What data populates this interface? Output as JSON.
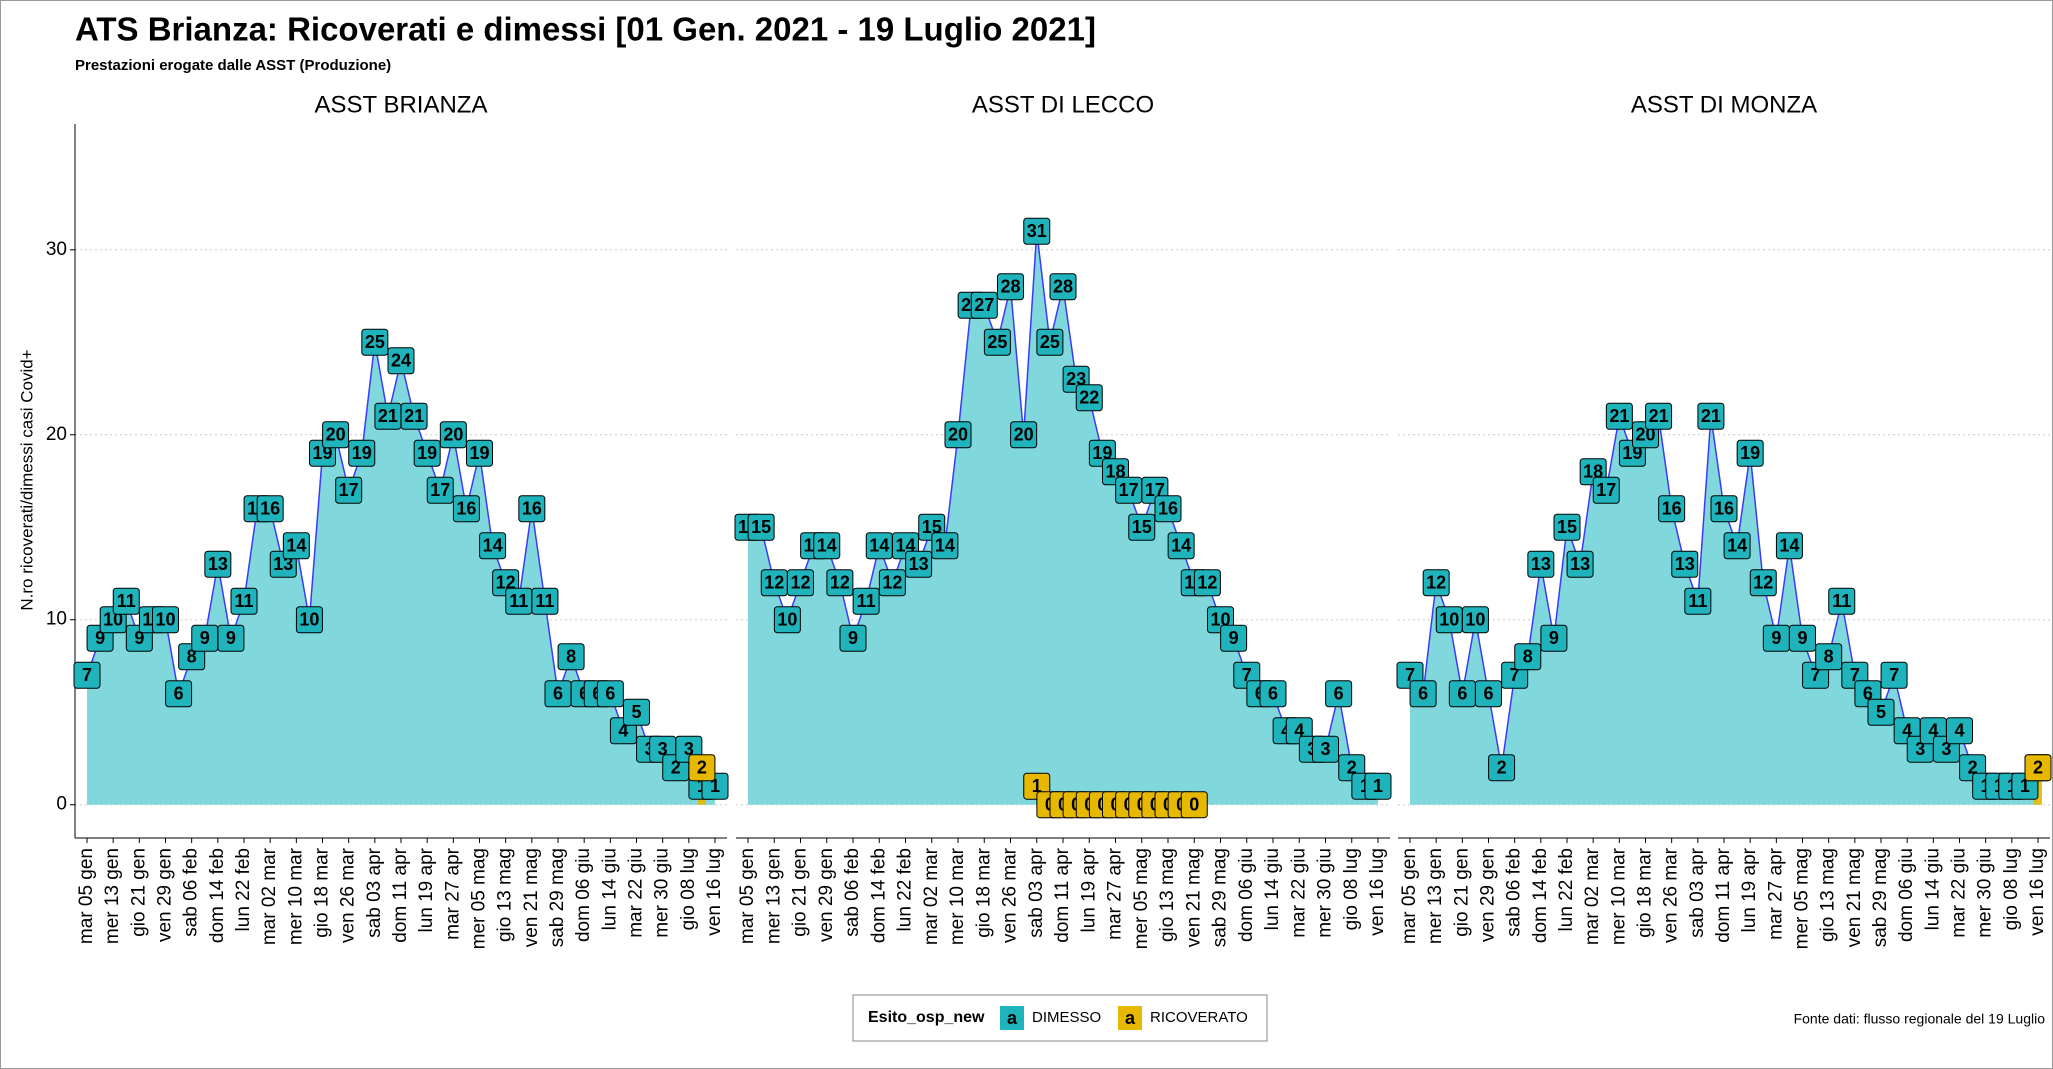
{
  "header": {
    "title": "ATS Brianza: Ricoverati e dimessi [01 Gen. 2021 - 19 Luglio 2021]",
    "subtitle": "Prestazioni erogate dalle ASST (Produzione)",
    "y_label": "N.ro ricoverati/dimessi casi Covid+"
  },
  "legend": {
    "title": "Esito_osp_new",
    "key_glyph": "a"
  },
  "source": "Fonte dati: flusso regionale del 19 Luglio",
  "chart_data": [
    {
      "type": "area",
      "title": "ASST BRIANZA",
      "ylim": [
        -1.8,
        36.8
      ],
      "yticks": [
        0,
        10,
        20,
        30
      ],
      "grid": true,
      "categories": [
        "mar 05 gen",
        null,
        "mer 13 gen",
        null,
        "gio 21 gen",
        null,
        "ven 29 gen",
        null,
        "sab 06 feb",
        null,
        "dom 14 feb",
        null,
        "lun 22 feb",
        null,
        "mar 02 mar",
        null,
        "mer 10 mar",
        null,
        "gio 18 mar",
        null,
        "ven 26 mar",
        null,
        "sab 03 apr",
        null,
        "dom 11 apr",
        null,
        "lun 19 apr",
        null,
        "mar 27 apr",
        null,
        "mer 05 mag",
        null,
        "gio 13 mag",
        null,
        "ven 21 mag",
        null,
        "sab 29 mag",
        null,
        "dom 06 giu",
        null,
        "lun 14 giu",
        null,
        "mar 22 giu",
        null,
        "mer 30 giu",
        null,
        "gio 08 lug",
        null,
        "ven 16 lug"
      ],
      "series": [
        {
          "name": "DIMESSO",
          "color": "#1fb3bb",
          "values": [
            7,
            9,
            10,
            11,
            9,
            10,
            10,
            6,
            8,
            9,
            13,
            9,
            11,
            16,
            16,
            13,
            14,
            10,
            19,
            20,
            17,
            19,
            25,
            21,
            24,
            21,
            19,
            17,
            20,
            16,
            19,
            14,
            12,
            11,
            16,
            11,
            6,
            8,
            6,
            6,
            6,
            4,
            5,
            3,
            3,
            2,
            3,
            1,
            1
          ]
        },
        {
          "name": "RICOVERATO",
          "color": "#e6b800",
          "values": [
            null,
            null,
            null,
            null,
            null,
            null,
            null,
            null,
            null,
            null,
            null,
            null,
            null,
            null,
            null,
            null,
            null,
            null,
            null,
            null,
            null,
            null,
            null,
            null,
            null,
            null,
            null,
            null,
            null,
            null,
            null,
            null,
            null,
            null,
            null,
            null,
            null,
            null,
            null,
            null,
            null,
            null,
            null,
            null,
            null,
            null,
            null,
            2,
            null
          ]
        }
      ]
    },
    {
      "type": "area",
      "title": "ASST DI LECCO",
      "ylim": [
        -1.8,
        36.8
      ],
      "yticks": [
        0,
        10,
        20,
        30
      ],
      "grid": true,
      "categories": [
        "mar 05 gen",
        null,
        "mer 13 gen",
        null,
        "gio 21 gen",
        null,
        "ven 29 gen",
        null,
        "sab 06 feb",
        null,
        "dom 14 feb",
        null,
        "lun 22 feb",
        null,
        "mar 02 mar",
        null,
        "mer 10 mar",
        null,
        "gio 18 mar",
        null,
        "ven 26 mar",
        null,
        "sab 03 apr",
        null,
        "dom 11 apr",
        null,
        "lun 19 apr",
        null,
        "mar 27 apr",
        null,
        "mer 05 mag",
        null,
        "gio 13 mag",
        null,
        "ven 21 mag",
        null,
        "sab 29 mag",
        null,
        "dom 06 giu",
        null,
        "lun 14 giu",
        null,
        "mar 22 giu",
        null,
        "mer 30 giu",
        null,
        "gio 08 lug",
        null,
        "ven 16 lug"
      ],
      "series": [
        {
          "name": "DIMESSO",
          "color": "#1fb3bb",
          "values": [
            15,
            15,
            12,
            10,
            12,
            14,
            14,
            12,
            9,
            11,
            14,
            12,
            14,
            13,
            15,
            14,
            20,
            27,
            27,
            25,
            28,
            20,
            31,
            25,
            28,
            23,
            22,
            19,
            18,
            17,
            15,
            17,
            16,
            14,
            12,
            12,
            10,
            9,
            7,
            6,
            6,
            4,
            4,
            3,
            3,
            6,
            2,
            1,
            1
          ]
        },
        {
          "name": "RICOVERATO",
          "color": "#e6b800",
          "values": [
            null,
            null,
            null,
            null,
            null,
            null,
            null,
            null,
            null,
            null,
            null,
            null,
            null,
            null,
            null,
            null,
            null,
            null,
            null,
            null,
            null,
            null,
            1,
            0,
            0,
            0,
            0,
            0,
            0,
            0,
            0,
            0,
            0,
            0,
            0,
            null,
            null,
            null,
            null,
            null,
            null,
            null,
            null,
            null,
            null,
            null,
            null,
            null,
            null
          ]
        }
      ]
    },
    {
      "type": "area",
      "title": "ASST DI MONZA",
      "ylim": [
        -1.8,
        36.8
      ],
      "yticks": [
        0,
        10,
        20,
        30
      ],
      "grid": true,
      "categories": [
        "mar 05 gen",
        null,
        "mer 13 gen",
        null,
        "gio 21 gen",
        null,
        "ven 29 gen",
        null,
        "sab 06 feb",
        null,
        "dom 14 feb",
        null,
        "lun 22 feb",
        null,
        "mar 02 mar",
        null,
        "mer 10 mar",
        null,
        "gio 18 mar",
        null,
        "ven 26 mar",
        null,
        "sab 03 apr",
        null,
        "dom 11 apr",
        null,
        "lun 19 apr",
        null,
        "mar 27 apr",
        null,
        "mer 05 mag",
        null,
        "gio 13 mag",
        null,
        "ven 21 mag",
        null,
        "sab 29 mag",
        null,
        "dom 06 giu",
        null,
        "lun 14 giu",
        null,
        "mar 22 giu",
        null,
        "mer 30 giu",
        null,
        "gio 08 lug",
        null,
        "ven 16 lug"
      ],
      "series": [
        {
          "name": "DIMESSO",
          "color": "#1fb3bb",
          "values": [
            7,
            6,
            12,
            10,
            6,
            10,
            6,
            2,
            7,
            8,
            13,
            9,
            15,
            13,
            18,
            17,
            21,
            19,
            20,
            21,
            16,
            13,
            11,
            21,
            16,
            14,
            19,
            12,
            9,
            14,
            9,
            7,
            8,
            11,
            7,
            6,
            5,
            7,
            4,
            3,
            4,
            3,
            4,
            2,
            1,
            1,
            1,
            1,
            2
          ]
        },
        {
          "name": "RICOVERATO",
          "color": "#e6b800",
          "values": [
            null,
            null,
            null,
            null,
            null,
            null,
            null,
            null,
            null,
            null,
            null,
            null,
            null,
            null,
            null,
            null,
            null,
            null,
            null,
            null,
            null,
            null,
            null,
            null,
            null,
            null,
            null,
            null,
            null,
            null,
            null,
            null,
            null,
            null,
            null,
            null,
            null,
            null,
            null,
            null,
            null,
            null,
            null,
            null,
            null,
            null,
            null,
            null,
            2
          ]
        }
      ]
    }
  ]
}
